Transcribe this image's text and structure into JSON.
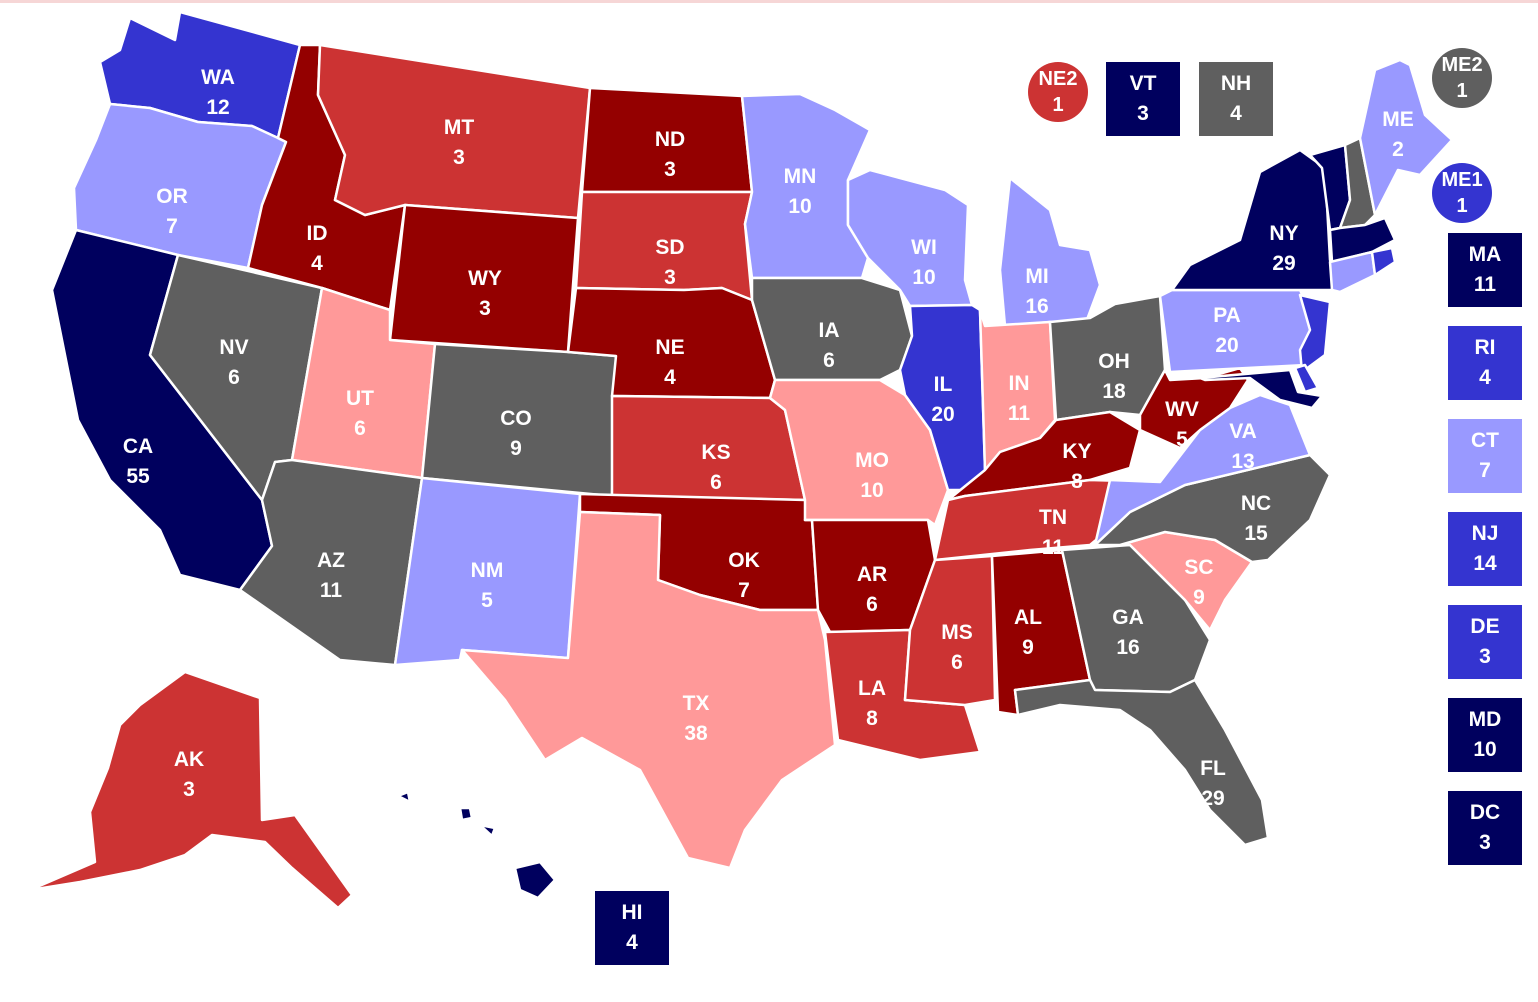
{
  "colors": {
    "safe_d": "#00005e",
    "likely_d": "#3434d0",
    "lean_d": "#9999ff",
    "tossup": "#5f5f5f",
    "lean_r": "#ff9999",
    "likely_r": "#cc3333",
    "safe_r": "#940000"
  },
  "states": {
    "WA": {
      "abbr": "WA",
      "ev": "12",
      "rating": "likely_d"
    },
    "OR": {
      "abbr": "OR",
      "ev": "7",
      "rating": "lean_d"
    },
    "CA": {
      "abbr": "CA",
      "ev": "55",
      "rating": "safe_d"
    },
    "NV": {
      "abbr": "NV",
      "ev": "6",
      "rating": "tossup"
    },
    "ID": {
      "abbr": "ID",
      "ev": "4",
      "rating": "safe_r"
    },
    "MT": {
      "abbr": "MT",
      "ev": "3",
      "rating": "likely_r"
    },
    "WY": {
      "abbr": "WY",
      "ev": "3",
      "rating": "safe_r"
    },
    "UT": {
      "abbr": "UT",
      "ev": "6",
      "rating": "lean_r"
    },
    "AZ": {
      "abbr": "AZ",
      "ev": "11",
      "rating": "tossup"
    },
    "CO": {
      "abbr": "CO",
      "ev": "9",
      "rating": "tossup"
    },
    "NM": {
      "abbr": "NM",
      "ev": "5",
      "rating": "lean_d"
    },
    "ND": {
      "abbr": "ND",
      "ev": "3",
      "rating": "safe_r"
    },
    "SD": {
      "abbr": "SD",
      "ev": "3",
      "rating": "likely_r"
    },
    "NE": {
      "abbr": "NE",
      "ev": "4",
      "rating": "safe_r"
    },
    "KS": {
      "abbr": "KS",
      "ev": "6",
      "rating": "likely_r"
    },
    "OK": {
      "abbr": "OK",
      "ev": "7",
      "rating": "safe_r"
    },
    "TX": {
      "abbr": "TX",
      "ev": "38",
      "rating": "lean_r"
    },
    "MN": {
      "abbr": "MN",
      "ev": "10",
      "rating": "lean_d"
    },
    "IA": {
      "abbr": "IA",
      "ev": "6",
      "rating": "tossup"
    },
    "MO": {
      "abbr": "MO",
      "ev": "10",
      "rating": "lean_r"
    },
    "AR": {
      "abbr": "AR",
      "ev": "6",
      "rating": "safe_r"
    },
    "LA": {
      "abbr": "LA",
      "ev": "8",
      "rating": "likely_r"
    },
    "WI": {
      "abbr": "WI",
      "ev": "10",
      "rating": "lean_d"
    },
    "IL": {
      "abbr": "IL",
      "ev": "20",
      "rating": "likely_d"
    },
    "MI": {
      "abbr": "MI",
      "ev": "16",
      "rating": "lean_d"
    },
    "IN": {
      "abbr": "IN",
      "ev": "11",
      "rating": "lean_r"
    },
    "OH": {
      "abbr": "OH",
      "ev": "18",
      "rating": "tossup"
    },
    "KY": {
      "abbr": "KY",
      "ev": "8",
      "rating": "safe_r"
    },
    "TN": {
      "abbr": "TN",
      "ev": "11",
      "rating": "likely_r"
    },
    "MS": {
      "abbr": "MS",
      "ev": "6",
      "rating": "likely_r"
    },
    "AL": {
      "abbr": "AL",
      "ev": "9",
      "rating": "safe_r"
    },
    "GA": {
      "abbr": "GA",
      "ev": "16",
      "rating": "tossup"
    },
    "FL": {
      "abbr": "FL",
      "ev": "29",
      "rating": "tossup"
    },
    "SC": {
      "abbr": "SC",
      "ev": "9",
      "rating": "lean_r"
    },
    "NC": {
      "abbr": "NC",
      "ev": "15",
      "rating": "tossup"
    },
    "VA": {
      "abbr": "VA",
      "ev": "13",
      "rating": "lean_d"
    },
    "WV": {
      "abbr": "WV",
      "ev": "5",
      "rating": "safe_r"
    },
    "PA": {
      "abbr": "PA",
      "ev": "20",
      "rating": "lean_d"
    },
    "NY": {
      "abbr": "NY",
      "ev": "29",
      "rating": "safe_d"
    },
    "ME": {
      "abbr": "ME",
      "ev": "2",
      "rating": "lean_d"
    },
    "AK": {
      "abbr": "AK",
      "ev": "3",
      "rating": "likely_r"
    },
    "HI": {
      "abbr": "HI",
      "ev": "4",
      "rating": "safe_d"
    },
    "VT": {
      "abbr": "VT",
      "ev": "3",
      "rating": "safe_d"
    },
    "NH": {
      "abbr": "NH",
      "ev": "4",
      "rating": "tossup"
    },
    "MA": {
      "abbr": "MA",
      "ev": "11",
      "rating": "safe_d"
    },
    "RI": {
      "abbr": "RI",
      "ev": "4",
      "rating": "likely_d"
    },
    "CT": {
      "abbr": "CT",
      "ev": "7",
      "rating": "lean_d"
    },
    "NJ": {
      "abbr": "NJ",
      "ev": "14",
      "rating": "likely_d"
    },
    "DE": {
      "abbr": "DE",
      "ev": "3",
      "rating": "likely_d"
    },
    "MD": {
      "abbr": "MD",
      "ev": "10",
      "rating": "safe_d"
    },
    "DC": {
      "abbr": "DC",
      "ev": "3",
      "rating": "safe_d"
    }
  },
  "districts": {
    "NE2": {
      "abbr": "NE2",
      "ev": "1",
      "rating": "likely_r"
    },
    "ME2": {
      "abbr": "ME2",
      "ev": "1",
      "rating": "tossup"
    },
    "ME1": {
      "abbr": "ME1",
      "ev": "1",
      "rating": "likely_d"
    }
  }
}
